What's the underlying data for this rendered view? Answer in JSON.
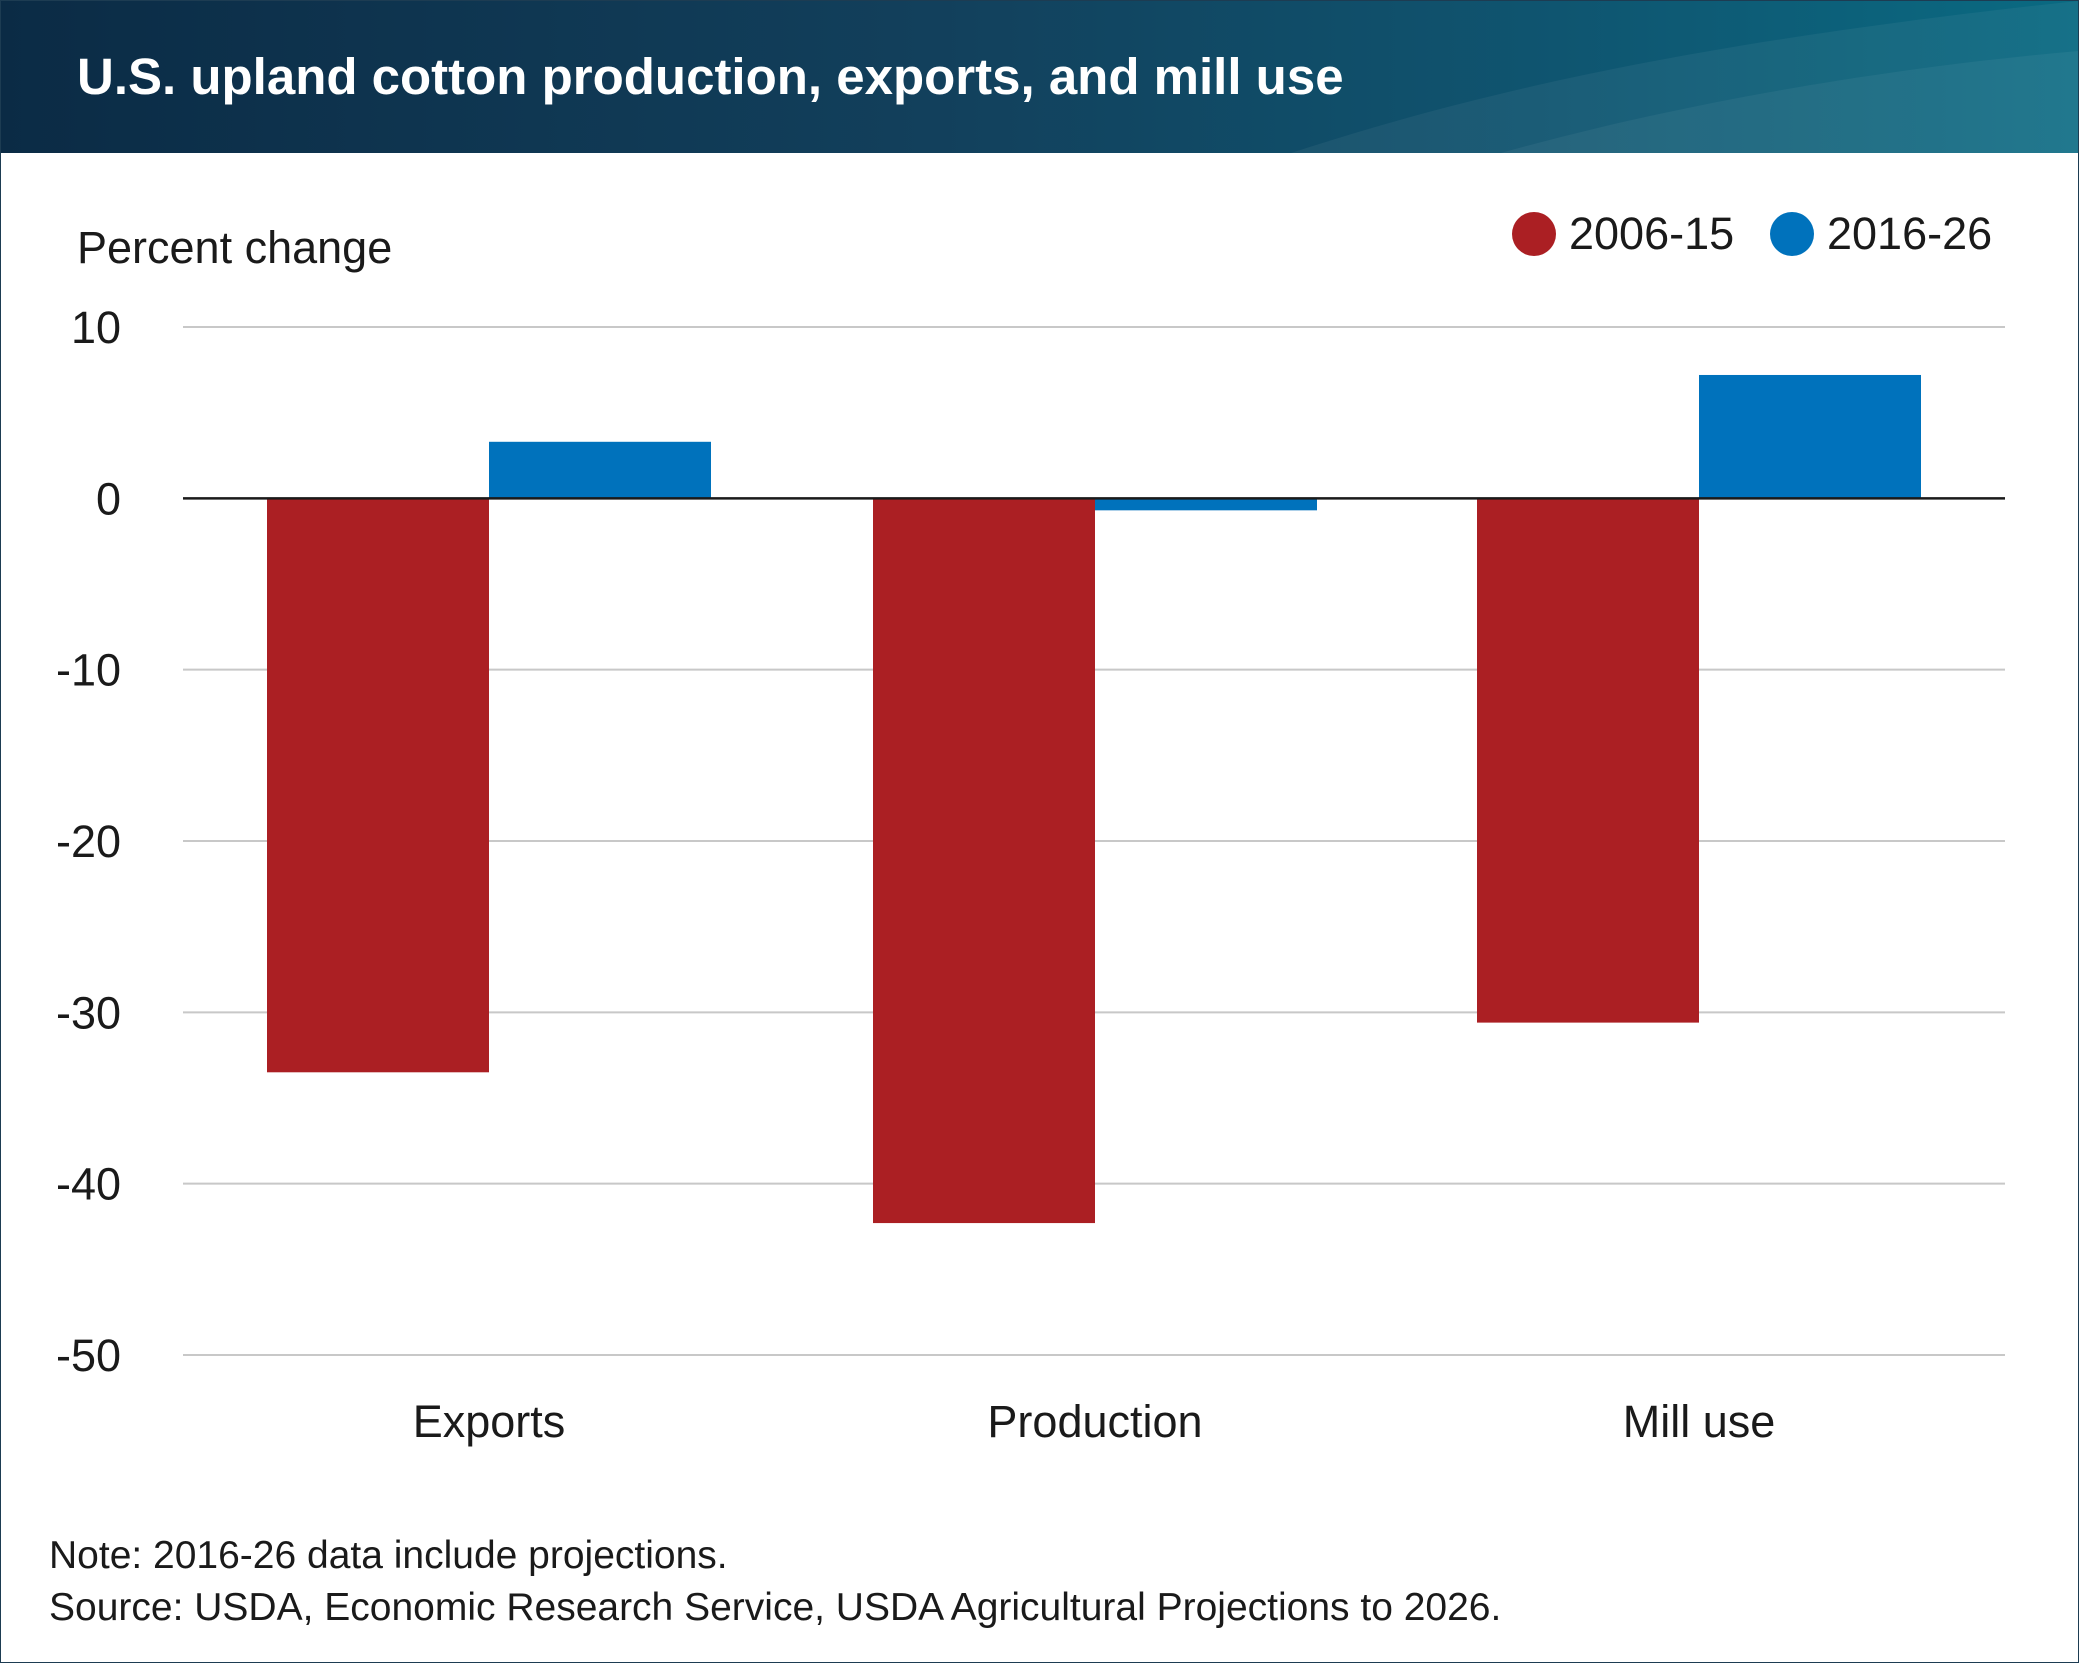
{
  "header": {
    "title": "U.S. upland cotton production, exports, and mill use"
  },
  "chart_data": {
    "type": "bar",
    "title": "U.S. upland cotton production, exports, and mill use",
    "ylabel": "Percent change",
    "xlabel": "",
    "categories": [
      "Exports",
      "Production",
      "Mill use"
    ],
    "series": [
      {
        "name": "2006-15",
        "color": "#ab1f23",
        "values": [
          -33.5,
          -42.3,
          -30.6
        ]
      },
      {
        "name": "2016-26",
        "color": "#0072bc",
        "values": [
          3.3,
          -0.7,
          7.2
        ]
      }
    ],
    "ylim": [
      -50,
      10
    ],
    "yticks": [
      10,
      0,
      -10,
      -20,
      -30,
      -40,
      -50
    ],
    "ytick_labels": [
      "10",
      "0",
      "-10",
      "-20",
      "-30",
      "-40",
      "-50"
    ],
    "grid": true,
    "legend_position": "top-right"
  },
  "footer": {
    "note": "Note: 2016-26 data include projections.",
    "source": "Source: USDA, Economic Research Service, USDA Agricultural Projections to 2026."
  },
  "colors": {
    "header_dark": "#0b2b45",
    "header_light": "#0a6a82",
    "gridline": "#c8c8c8",
    "zero_line": "#1a1a1a"
  }
}
